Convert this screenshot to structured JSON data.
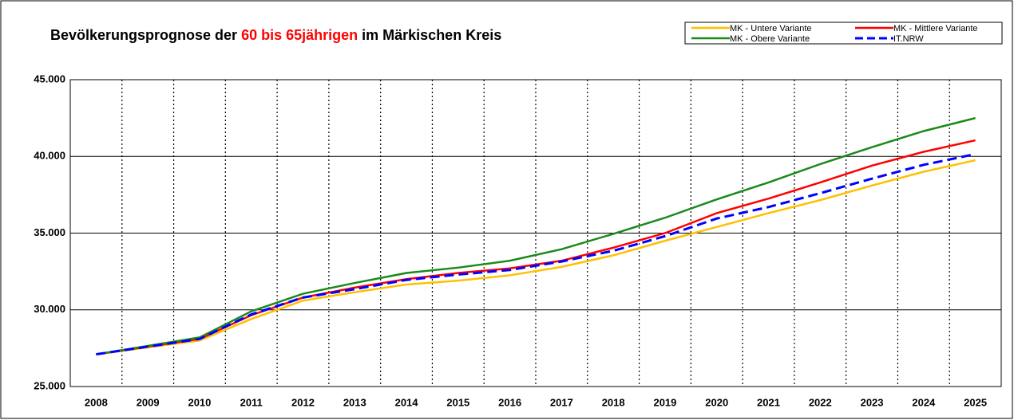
{
  "chart_data": {
    "type": "line",
    "title_parts": [
      "Bevölkerungsprognose der ",
      "60 bis 65jährigen",
      " im Märkischen Kreis"
    ],
    "categories": [
      "2008",
      "2009",
      "2010",
      "2011",
      "2012",
      "2013",
      "2014",
      "2015",
      "2016",
      "2017",
      "2018",
      "2019",
      "2020",
      "2021",
      "2022",
      "2023",
      "2024",
      "2025"
    ],
    "series": [
      {
        "name": "MK - Untere Variante",
        "color": "#ffc000",
        "dash": false,
        "values": [
          27100,
          27550,
          28000,
          29400,
          30600,
          31150,
          31650,
          31900,
          32250,
          32800,
          33550,
          34500,
          35400,
          36300,
          37150,
          38100,
          39000,
          39750
        ]
      },
      {
        "name": "MK - Mittlere Variante",
        "color": "#ff0000",
        "dash": false,
        "values": [
          27100,
          27600,
          28100,
          29650,
          30800,
          31450,
          32000,
          32400,
          32700,
          33200,
          34050,
          35000,
          36300,
          37250,
          38300,
          39400,
          40300,
          41050
        ]
      },
      {
        "name": "MK - Obere Variante",
        "color": "#1a8a1a",
        "dash": false,
        "values": [
          27100,
          27650,
          28200,
          29900,
          31050,
          31750,
          32400,
          32750,
          33200,
          33950,
          34950,
          36000,
          37200,
          38300,
          39500,
          40600,
          41650,
          42500
        ]
      },
      {
        "name": "IT.NRW",
        "color": "#0000ff",
        "dash": true,
        "values": [
          27100,
          27600,
          28100,
          29700,
          30800,
          31350,
          31950,
          32300,
          32600,
          33150,
          33850,
          34800,
          35950,
          36700,
          37600,
          38550,
          39450,
          40150
        ]
      }
    ],
    "ylim": [
      25000,
      45000
    ],
    "yticks": [
      {
        "value": 25000,
        "label": "25.000"
      },
      {
        "value": 30000,
        "label": "30.000"
      },
      {
        "value": 35000,
        "label": "35.000"
      },
      {
        "value": 40000,
        "label": "40.000"
      },
      {
        "value": 45000,
        "label": "45.000"
      }
    ],
    "grid": true,
    "legend": "top-right"
  }
}
